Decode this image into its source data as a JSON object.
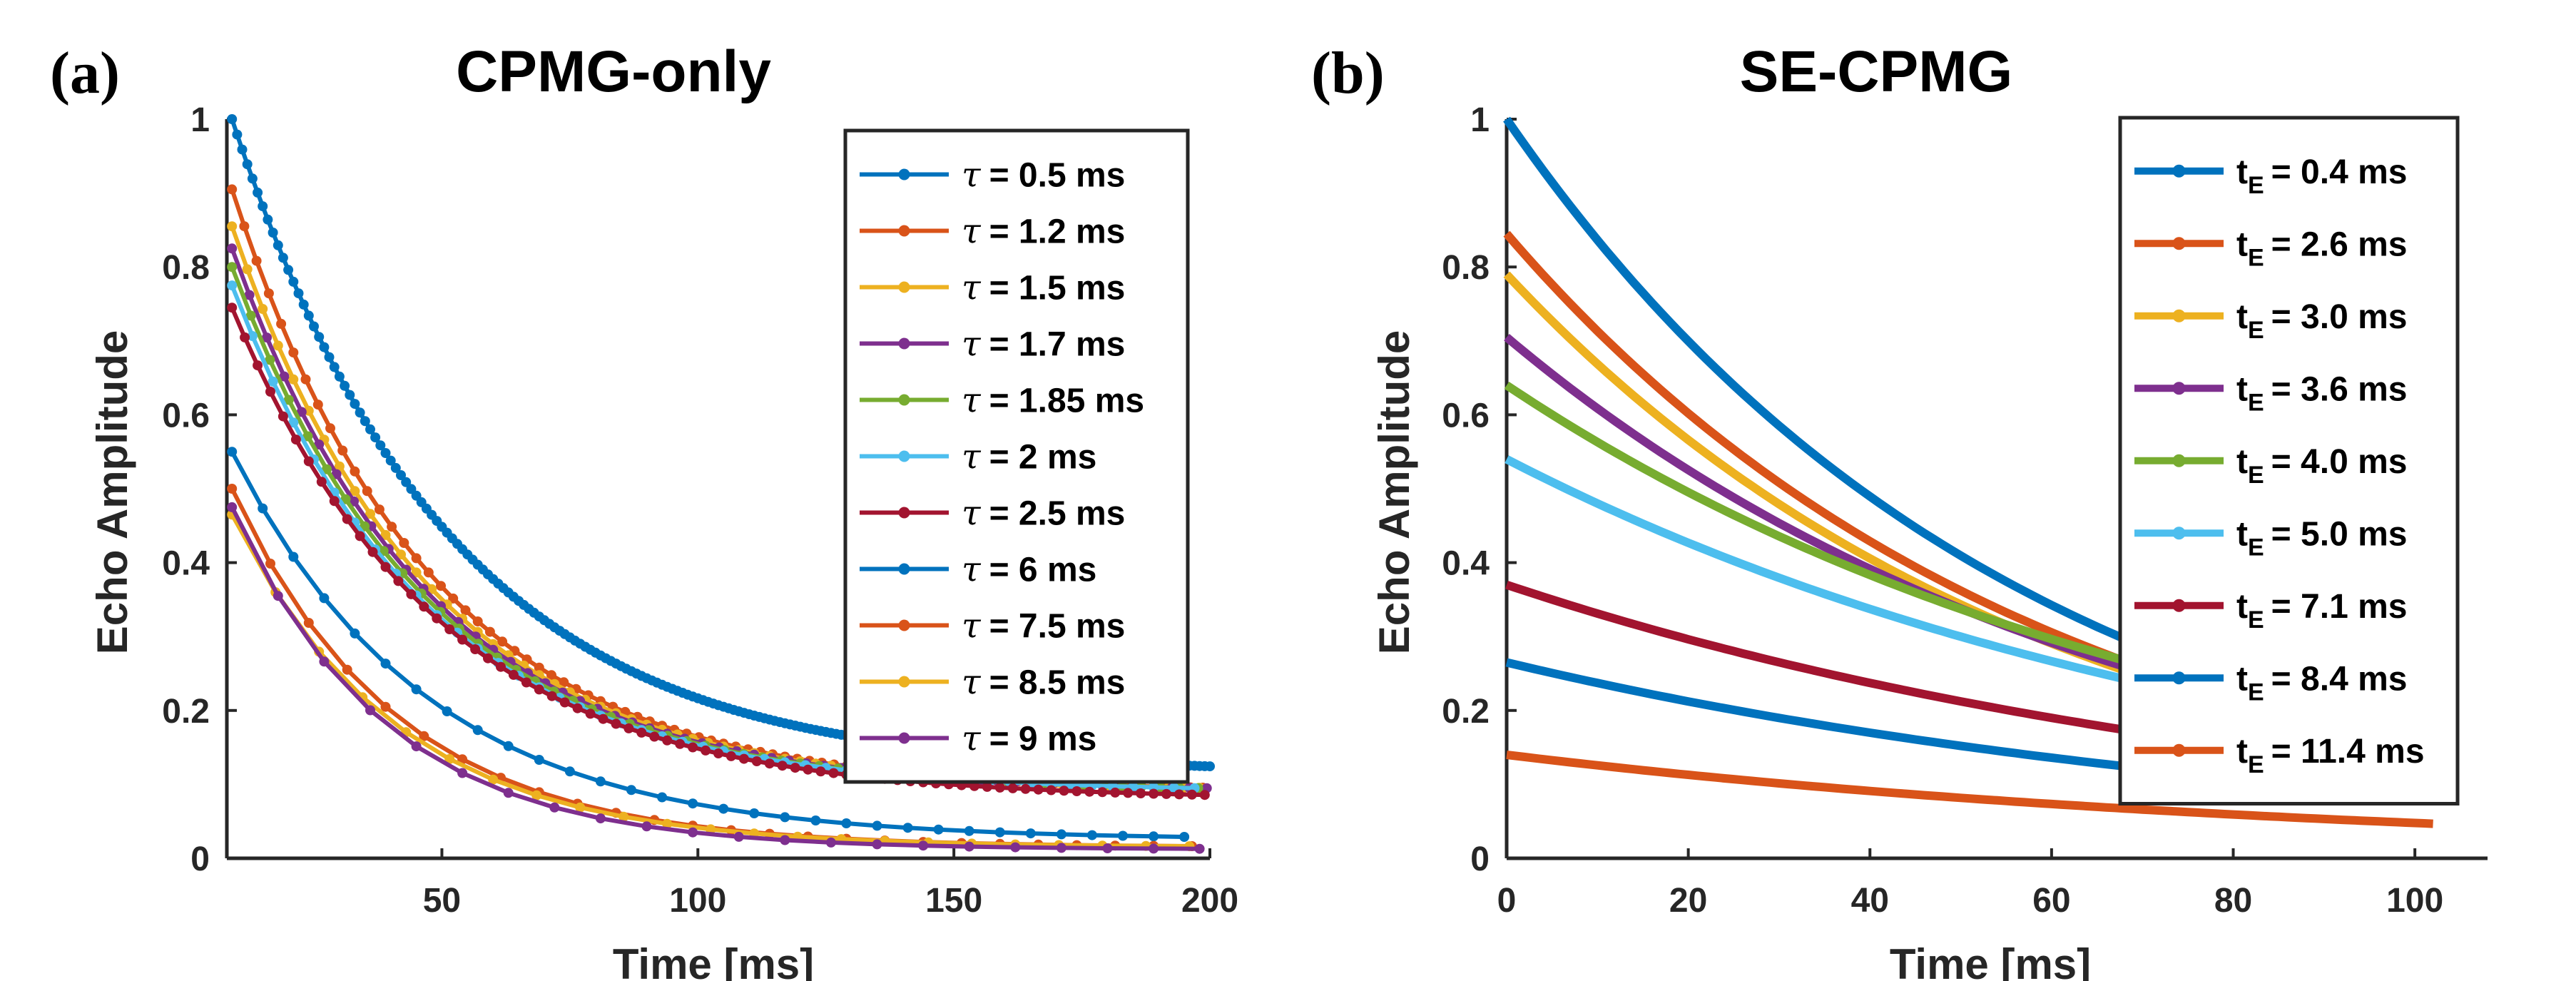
{
  "colors": {
    "blue": "#0072BD",
    "orange": "#D95319",
    "yellow": "#EDB120",
    "purple": "#7E2F8E",
    "green": "#77AC30",
    "cyan": "#4DBEEE",
    "darkred": "#A2142F"
  },
  "chart_data": [
    {
      "type": "line",
      "panel_label": "(a)",
      "title": "CPMG-only",
      "xlabel": "Time [ms]",
      "ylabel": "Echo Amplitude",
      "xlim": [
        8,
        200
      ],
      "ylim": [
        0,
        1
      ],
      "xticks": [
        50,
        100,
        150,
        200
      ],
      "xtick_labels": [
        "50",
        "100",
        "150",
        "200"
      ],
      "yticks": [
        0,
        0.2,
        0.4,
        0.6,
        0.8,
        1
      ],
      "ytick_labels": [
        "0",
        "0.2",
        "0.4",
        "0.6",
        "0.8",
        "1"
      ],
      "legend_position": "top-right",
      "legend_symbol": "τ",
      "markers": true,
      "series": [
        {
          "name": "τ = 0.5 ms",
          "label": "= 0.5 ms",
          "color": "#0072BD",
          "t_start": 9,
          "t_end": 200,
          "step": 1,
          "value_at_start": 1.0,
          "tail_value": 0.115,
          "T2": 42
        },
        {
          "name": "τ = 1.2 ms",
          "label": "= 1.2 ms",
          "color": "#D95319",
          "t_start": 9,
          "t_end": 200,
          "step": 2.4,
          "value_at_start": 0.905,
          "tail_value": 0.09,
          "T2": 38
        },
        {
          "name": "τ = 1.5 ms",
          "label": "= 1.5 ms",
          "color": "#EDB120",
          "t_start": 9,
          "t_end": 200,
          "step": 3.0,
          "value_at_start": 0.855,
          "tail_value": 0.09,
          "T2": 38
        },
        {
          "name": "τ = 1.7 ms",
          "label": "= 1.7 ms",
          "color": "#7E2F8E",
          "t_start": 9,
          "t_end": 200,
          "step": 3.4,
          "value_at_start": 0.825,
          "tail_value": 0.09,
          "T2": 38
        },
        {
          "name": "τ = 1.85 ms",
          "label": "= 1.85 ms",
          "color": "#77AC30",
          "t_start": 9,
          "t_end": 200,
          "step": 3.7,
          "value_at_start": 0.8,
          "tail_value": 0.09,
          "T2": 38
        },
        {
          "name": "τ = 2 ms",
          "label": "= 2 ms",
          "color": "#4DBEEE",
          "t_start": 9,
          "t_end": 200,
          "step": 4.0,
          "value_at_start": 0.775,
          "tail_value": 0.09,
          "T2": 38
        },
        {
          "name": "τ = 2.5 ms",
          "label": "= 2.5 ms",
          "color": "#A2142F",
          "t_start": 9,
          "t_end": 200,
          "step": 2.5,
          "value_at_start": 0.745,
          "tail_value": 0.08,
          "T2": 40
        },
        {
          "name": "τ = 6 ms",
          "label": "= 6 ms",
          "color": "#0072BD",
          "t_start": 9,
          "t_end": 200,
          "step": 6.0,
          "value_at_start": 0.55,
          "tail_value": 0.025,
          "T2": 38
        },
        {
          "name": "τ = 7.5 ms",
          "label": "= 7.5 ms",
          "color": "#D95319",
          "t_start": 9,
          "t_end": 200,
          "step": 7.5,
          "value_at_start": 0.5,
          "tail_value": 0.015,
          "T2": 32
        },
        {
          "name": "τ = 8.5 ms",
          "label": "= 8.5 ms",
          "color": "#EDB120",
          "t_start": 9,
          "t_end": 200,
          "step": 8.5,
          "value_at_start": 0.465,
          "tail_value": 0.015,
          "T2": 32
        },
        {
          "name": "τ = 9 ms",
          "label": "= 9 ms",
          "color": "#7E2F8E",
          "t_start": 9,
          "t_end": 200,
          "step": 9.0,
          "value_at_start": 0.475,
          "tail_value": 0.012,
          "T2": 30
        }
      ]
    },
    {
      "type": "line",
      "panel_label": "(b)",
      "title": "SE-CPMG",
      "xlabel": "Time [ms]",
      "ylabel": "Echo Amplitude",
      "xlim": [
        0,
        108
      ],
      "ylim": [
        0,
        1
      ],
      "xticks": [
        0,
        20,
        40,
        60,
        80,
        100
      ],
      "xtick_labels": [
        "0",
        "20",
        "40",
        "60",
        "80",
        "100"
      ],
      "yticks": [
        0,
        0.2,
        0.4,
        0.6,
        0.8,
        1
      ],
      "ytick_labels": [
        "0",
        "0.2",
        "0.4",
        "0.6",
        "0.8",
        "1"
      ],
      "legend_position": "top-right",
      "legend_symbol": "t",
      "legend_subscript": "E",
      "markers": false,
      "series": [
        {
          "name": "tE = 0.4 ms",
          "label": "= 0.4 ms",
          "color": "#0072BD",
          "t_start": 0,
          "t_end": 102,
          "value_at_start": 1.0,
          "tail_value": 0.0,
          "T2": 56
        },
        {
          "name": "tE = 2.6 ms",
          "label": "= 2.6 ms",
          "color": "#D95319",
          "t_start": 0,
          "t_end": 70,
          "value_at_start": 0.845,
          "tail_value": 0.0,
          "T2": 59
        },
        {
          "name": "tE = 3.0 ms",
          "label": "= 3.0 ms",
          "color": "#EDB120",
          "t_start": 0,
          "t_end": 70,
          "value_at_start": 0.79,
          "tail_value": 0.0,
          "T2": 60
        },
        {
          "name": "tE = 3.6 ms",
          "label": "= 3.6 ms",
          "color": "#7E2F8E",
          "t_start": 0,
          "t_end": 70,
          "value_at_start": 0.705,
          "tail_value": 0.0,
          "T2": 68
        },
        {
          "name": "tE = 4.0 ms",
          "label": "= 4.0 ms",
          "color": "#77AC30",
          "t_start": 0,
          "t_end": 70,
          "value_at_start": 0.64,
          "tail_value": 0.0,
          "T2": 78
        },
        {
          "name": "tE = 5.0 ms",
          "label": "= 5.0 ms",
          "color": "#4DBEEE",
          "t_start": 0,
          "t_end": 70,
          "value_at_start": 0.54,
          "tail_value": 0.0,
          "T2": 85
        },
        {
          "name": "tE = 7.1 ms",
          "label": "= 7.1 ms",
          "color": "#A2142F",
          "t_start": 0,
          "t_end": 70,
          "value_at_start": 0.37,
          "tail_value": 0.0,
          "T2": 90
        },
        {
          "name": "tE = 8.4 ms",
          "label": "= 8.4 ms",
          "color": "#0072BD",
          "t_start": 0,
          "t_end": 102,
          "value_at_start": 0.265,
          "tail_value": 0.0,
          "T2": 90
        },
        {
          "name": "tE = 11.4 ms",
          "label": "= 11.4 ms",
          "color": "#D95319",
          "t_start": 0,
          "t_end": 102,
          "value_at_start": 0.14,
          "tail_value": 0.0,
          "T2": 93
        }
      ]
    }
  ]
}
